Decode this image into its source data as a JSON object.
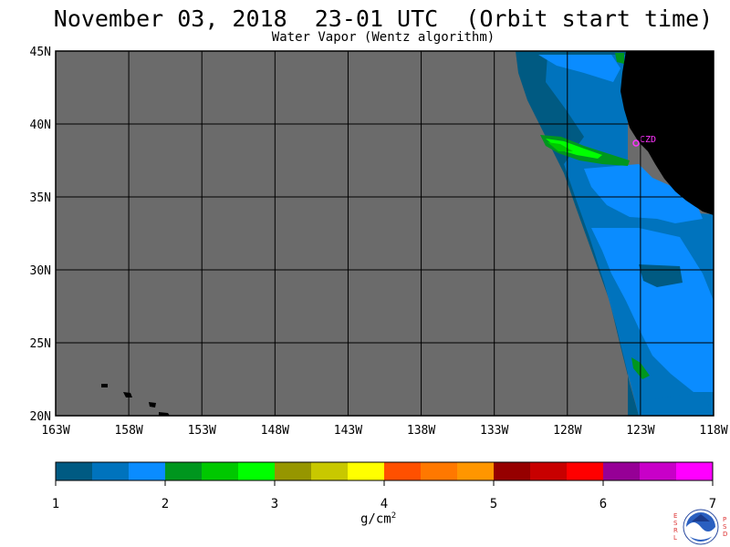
{
  "header": {
    "title": "November 03, 2018  23-01 UTC  (Orbit start time)",
    "subtitle": "Water Vapor (Wentz algorithm)"
  },
  "map": {
    "lon_range": [
      -163,
      -118
    ],
    "lat_range": [
      20,
      45
    ],
    "lon_ticks": [
      "163W",
      "158W",
      "153W",
      "148W",
      "143W",
      "138W",
      "133W",
      "128W",
      "123W",
      "118W"
    ],
    "lat_ticks": [
      "45N",
      "40N",
      "35N",
      "30N",
      "25N",
      "20N"
    ],
    "station_label": "CZD",
    "colors": {
      "no_data": "#6b6b6b",
      "land": "#000000",
      "station": "#ff33ff"
    }
  },
  "colorbar": {
    "ticks": [
      "1",
      "2",
      "3",
      "4",
      "5",
      "6",
      "7"
    ],
    "units_base": "g/cm",
    "units_exp": "2",
    "colors": [
      "#005a82",
      "#0073bd",
      "#0a8cff",
      "#00961e",
      "#00c800",
      "#00ff00",
      "#969600",
      "#c8c800",
      "#ffff00",
      "#ff5000",
      "#ff7800",
      "#ff9600",
      "#960000",
      "#c80000",
      "#ff0000",
      "#960096",
      "#c800c8",
      "#ff00ff"
    ]
  },
  "logo": {
    "left_letters": [
      "E",
      "S",
      "R",
      "L"
    ],
    "right_letters": [
      "P",
      "S",
      "D"
    ],
    "text": "NOAA"
  }
}
